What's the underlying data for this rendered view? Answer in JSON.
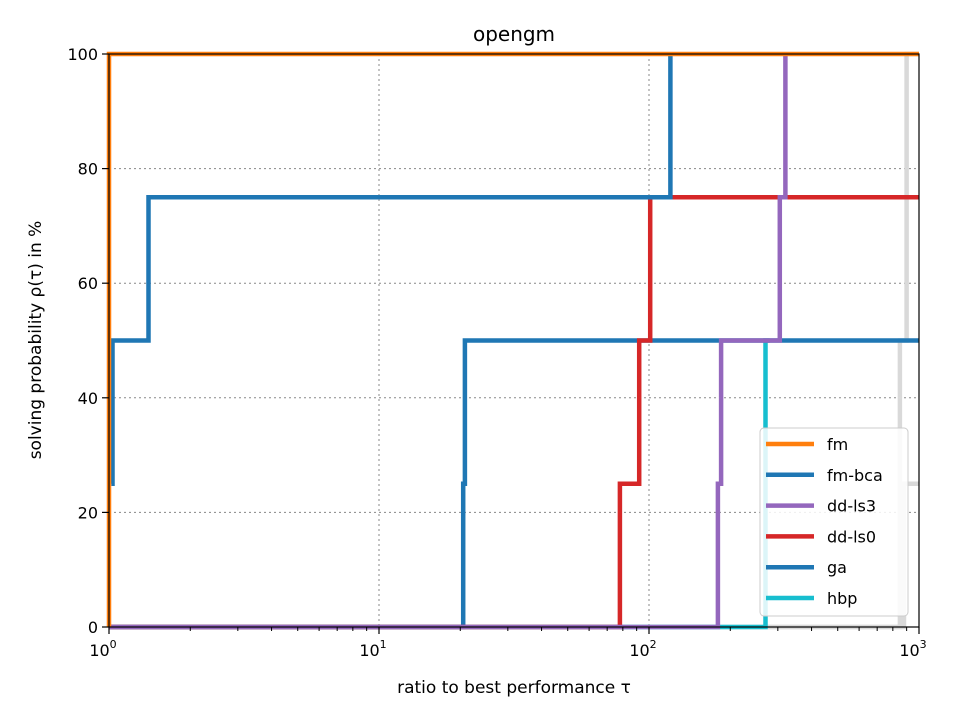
{
  "chart_data": {
    "type": "line",
    "title": "opengm",
    "xlabel": "ratio to best performance τ",
    "ylabel": "solving probability ρ(τ) in %",
    "xscale": "log",
    "xlim": [
      1,
      1000
    ],
    "ylim": [
      0,
      100
    ],
    "grid": true,
    "legend_position": "lower right",
    "x_ticks": [
      {
        "value": 1,
        "base": "10",
        "exp": "0"
      },
      {
        "value": 10,
        "base": "10",
        "exp": "1"
      },
      {
        "value": 100,
        "base": "10",
        "exp": "2"
      },
      {
        "value": 1000,
        "base": "10",
        "exp": "3"
      }
    ],
    "y_ticks": [
      0,
      20,
      40,
      60,
      80,
      100
    ],
    "series": [
      {
        "name": "",
        "color": "#d9d9d9",
        "points": [
          [
            1,
            0
          ],
          [
            850,
            0
          ],
          [
            850,
            50
          ],
          [
            900,
            50
          ],
          [
            900,
            100
          ],
          [
            1000,
            100
          ]
        ]
      },
      {
        "name": "",
        "color": "#d9d9d9",
        "points": [
          [
            1,
            0
          ],
          [
            880,
            0
          ],
          [
            880,
            25
          ],
          [
            1000,
            25
          ]
        ]
      },
      {
        "name": "hbp",
        "color": "#17becf",
        "points": [
          [
            1,
            0
          ],
          [
            270,
            0
          ],
          [
            270,
            50
          ],
          [
            280,
            50
          ]
        ]
      },
      {
        "name": "ga",
        "color": "#1f77b4",
        "points": [
          [
            1,
            0
          ],
          [
            20.5,
            0
          ],
          [
            20.5,
            25
          ],
          [
            20.8,
            25
          ],
          [
            20.8,
            50
          ],
          [
            1000,
            50
          ]
        ]
      },
      {
        "name": "dd-ls0",
        "color": "#d62728",
        "points": [
          [
            1,
            0
          ],
          [
            78,
            0
          ],
          [
            78,
            25
          ],
          [
            92,
            25
          ],
          [
            92,
            50
          ],
          [
            101,
            50
          ],
          [
            101,
            75
          ],
          [
            1000,
            75
          ]
        ]
      },
      {
        "name": "dd-ls3",
        "color": "#9467bd",
        "points": [
          [
            1,
            0
          ],
          [
            180,
            0
          ],
          [
            180,
            25
          ],
          [
            185,
            25
          ],
          [
            185,
            50
          ],
          [
            305,
            50
          ],
          [
            305,
            75
          ],
          [
            320,
            75
          ],
          [
            320,
            100
          ]
        ]
      },
      {
        "name": "fm-bca",
        "color": "#1f77b4",
        "points": [
          [
            1.02,
            25
          ],
          [
            1.03,
            25
          ],
          [
            1.03,
            50
          ],
          [
            1.4,
            50
          ],
          [
            1.4,
            75
          ],
          [
            120,
            75
          ],
          [
            120,
            100
          ]
        ]
      },
      {
        "name": "fm",
        "color": "#ff7f0e",
        "points": [
          [
            1,
            0
          ],
          [
            1,
            100
          ],
          [
            1000,
            100
          ]
        ]
      }
    ],
    "legend": [
      {
        "label": "fm",
        "color": "#ff7f0e"
      },
      {
        "label": "fm-bca",
        "color": "#1f77b4"
      },
      {
        "label": "dd-ls3",
        "color": "#9467bd"
      },
      {
        "label": "dd-ls0",
        "color": "#d62728"
      },
      {
        "label": "ga",
        "color": "#1f77b4"
      },
      {
        "label": "hbp",
        "color": "#17becf"
      }
    ]
  }
}
